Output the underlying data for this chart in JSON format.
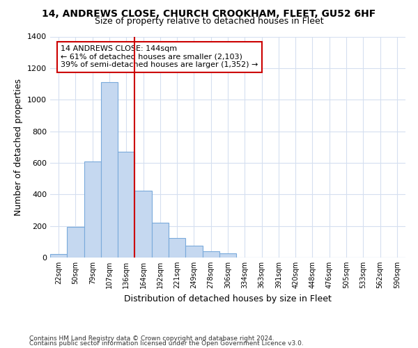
{
  "title": "14, ANDREWS CLOSE, CHURCH CROOKHAM, FLEET, GU52 6HF",
  "subtitle": "Size of property relative to detached houses in Fleet",
  "xlabel": "Distribution of detached houses by size in Fleet",
  "ylabel": "Number of detached properties",
  "categories": [
    "22sqm",
    "50sqm",
    "79sqm",
    "107sqm",
    "136sqm",
    "164sqm",
    "192sqm",
    "221sqm",
    "249sqm",
    "278sqm",
    "306sqm",
    "334sqm",
    "363sqm",
    "391sqm",
    "420sqm",
    "448sqm",
    "476sqm",
    "505sqm",
    "533sqm",
    "562sqm",
    "590sqm"
  ],
  "values": [
    20,
    195,
    610,
    1110,
    670,
    425,
    220,
    125,
    75,
    38,
    27,
    0,
    0,
    0,
    0,
    0,
    0,
    0,
    0,
    0,
    0
  ],
  "bar_color": "#c5d8f0",
  "bar_edge_color": "#7aaadb",
  "grid_color": "#d5dff0",
  "background_color": "#ffffff",
  "vline_x": 4.5,
  "vline_color": "#cc0000",
  "annotation_text": "14 ANDREWS CLOSE: 144sqm\n← 61% of detached houses are smaller (2,103)\n39% of semi-detached houses are larger (1,352) →",
  "annotation_box_color": "#ffffff",
  "annotation_box_edge": "#cc0000",
  "ylim": [
    0,
    1400
  ],
  "yticks": [
    0,
    200,
    400,
    600,
    800,
    1000,
    1200,
    1400
  ],
  "footer1": "Contains HM Land Registry data © Crown copyright and database right 2024.",
  "footer2": "Contains public sector information licensed under the Open Government Licence v3.0."
}
